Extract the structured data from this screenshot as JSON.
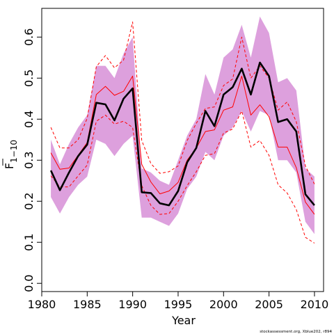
{
  "chart_data": {
    "type": "line",
    "title": "",
    "xlabel": "Year",
    "ylabel": "F",
    "ylabel_subscript": "1−10",
    "xlim": [
      1980,
      2011
    ],
    "ylim": [
      -0.02,
      0.67
    ],
    "x_ticks": [
      "1980",
      "1985",
      "1990",
      "1995",
      "2000",
      "2005",
      "2010"
    ],
    "y_ticks": [
      "0.0",
      "0.1",
      "0.2",
      "0.3",
      "0.4",
      "0.5",
      "0.6"
    ],
    "x": [
      1981,
      1982,
      1983,
      1984,
      1985,
      1986,
      1987,
      1988,
      1989,
      1990,
      1991,
      1992,
      1993,
      1994,
      1995,
      1996,
      1997,
      1998,
      1999,
      2000,
      2001,
      2002,
      2003,
      2004,
      2005,
      2006,
      2007,
      2008,
      2009,
      2010
    ],
    "band_upper": [
      0.35,
      0.29,
      0.34,
      0.38,
      0.41,
      0.53,
      0.53,
      0.5,
      0.56,
      0.6,
      0.28,
      0.27,
      0.25,
      0.24,
      0.3,
      0.36,
      0.4,
      0.51,
      0.46,
      0.55,
      0.57,
      0.63,
      0.55,
      0.65,
      0.61,
      0.49,
      0.5,
      0.47,
      0.28,
      0.26
    ],
    "band_lower": [
      0.21,
      0.17,
      0.21,
      0.24,
      0.26,
      0.35,
      0.34,
      0.31,
      0.34,
      0.36,
      0.16,
      0.16,
      0.15,
      0.14,
      0.17,
      0.23,
      0.26,
      0.32,
      0.3,
      0.36,
      0.38,
      0.42,
      0.37,
      0.42,
      0.41,
      0.3,
      0.3,
      0.27,
      0.15,
      0.12
    ],
    "series": [
      {
        "role": "estimate",
        "color": "#000000",
        "values": [
          0.275,
          0.227,
          0.27,
          0.31,
          0.338,
          0.44,
          0.436,
          0.397,
          0.45,
          0.475,
          0.222,
          0.22,
          0.195,
          0.19,
          0.225,
          0.295,
          0.33,
          0.42,
          0.383,
          0.46,
          0.478,
          0.523,
          0.46,
          0.538,
          0.505,
          0.393,
          0.4,
          0.37,
          0.217,
          0.19
        ]
      },
      {
        "role": "mid",
        "color": "#ff0000",
        "dash": "solid",
        "values": [
          0.318,
          0.278,
          0.281,
          0.312,
          0.343,
          0.46,
          0.48,
          0.458,
          0.468,
          0.505,
          0.29,
          0.247,
          0.218,
          0.225,
          0.246,
          0.3,
          0.33,
          0.37,
          0.374,
          0.422,
          0.43,
          0.505,
          0.41,
          0.435,
          0.406,
          0.332,
          0.332,
          0.282,
          0.198,
          0.168
        ]
      },
      {
        "role": "upper",
        "color": "#ff0000",
        "dash": "dashed",
        "values": [
          0.38,
          0.33,
          0.33,
          0.35,
          0.402,
          0.528,
          0.555,
          0.525,
          0.544,
          0.637,
          0.348,
          0.292,
          0.268,
          0.272,
          0.286,
          0.348,
          0.39,
          0.426,
          0.43,
          0.482,
          0.498,
          0.6,
          0.5,
          0.53,
          0.5,
          0.422,
          0.442,
          0.394,
          0.286,
          0.242
        ]
      },
      {
        "role": "lower",
        "color": "#ff0000",
        "dash": "dashed",
        "values": [
          0.262,
          0.235,
          0.235,
          0.262,
          0.288,
          0.395,
          0.41,
          0.388,
          0.395,
          0.38,
          0.238,
          0.19,
          0.168,
          0.17,
          0.2,
          0.238,
          0.272,
          0.312,
          0.316,
          0.366,
          0.376,
          0.42,
          0.332,
          0.348,
          0.312,
          0.24,
          0.22,
          0.18,
          0.112,
          0.098
        ]
      }
    ],
    "band_color": "#dda0dd",
    "grid": false,
    "legend": "none"
  },
  "footer": "stockassessment.org, Xblue202, r894"
}
